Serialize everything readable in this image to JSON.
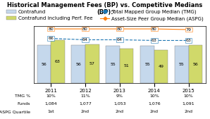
{
  "chart_data": {
    "type": "bar",
    "title": "Historical Management Fees (BP) vs. Competitive Medians (BP):",
    "categories": [
      "2011",
      "2012",
      "2013",
      "2014",
      "2015"
    ],
    "series": [
      {
        "name": "Contrafund",
        "type": "bar",
        "color": "#c5d8ec",
        "values": [
          56,
          56,
          55,
          55,
          55
        ]
      },
      {
        "name": "Contrafund including Perf. Fee",
        "type": "bar",
        "color": "#d0d96a",
        "values": [
          63,
          57,
          51,
          49,
          56
        ]
      },
      {
        "name": "Total Mapped Group Median (TMG)",
        "type": "line",
        "marker": "square",
        "line_style": "dashed",
        "values": [
          66,
          64,
          64,
          63,
          63
        ]
      },
      {
        "name": "Asset-Size Peer Group Median (ASPG)",
        "type": "line",
        "marker": "diamond",
        "line_style": "solid",
        "values": [
          80,
          80,
          80,
          80,
          79
        ]
      }
    ],
    "ylim": [
      0,
      84
    ],
    "yticks": [],
    "tick_labels": "x",
    "data_labels": true,
    "legend": "upper center",
    "table": [
      {
        "name": "TMG %",
        "values": [
          10,
          11,
          9,
          10,
          10
        ],
        "value_labels": [
          "10%",
          "11%",
          "9%",
          "10%",
          "10%"
        ]
      },
      {
        "name": "Funds",
        "values": [
          1084,
          1077,
          1053,
          1076,
          1091
        ],
        "value_labels": [
          "1,084",
          "1,077",
          "1,053",
          "1,076",
          "1,091"
        ]
      },
      {
        "name": "ASPG Quartile",
        "values": [
          1,
          2,
          2,
          2,
          2
        ],
        "value_labels": [
          "1st",
          "2nd",
          "2nd",
          "2nd",
          "2nd"
        ]
      }
    ]
  }
}
